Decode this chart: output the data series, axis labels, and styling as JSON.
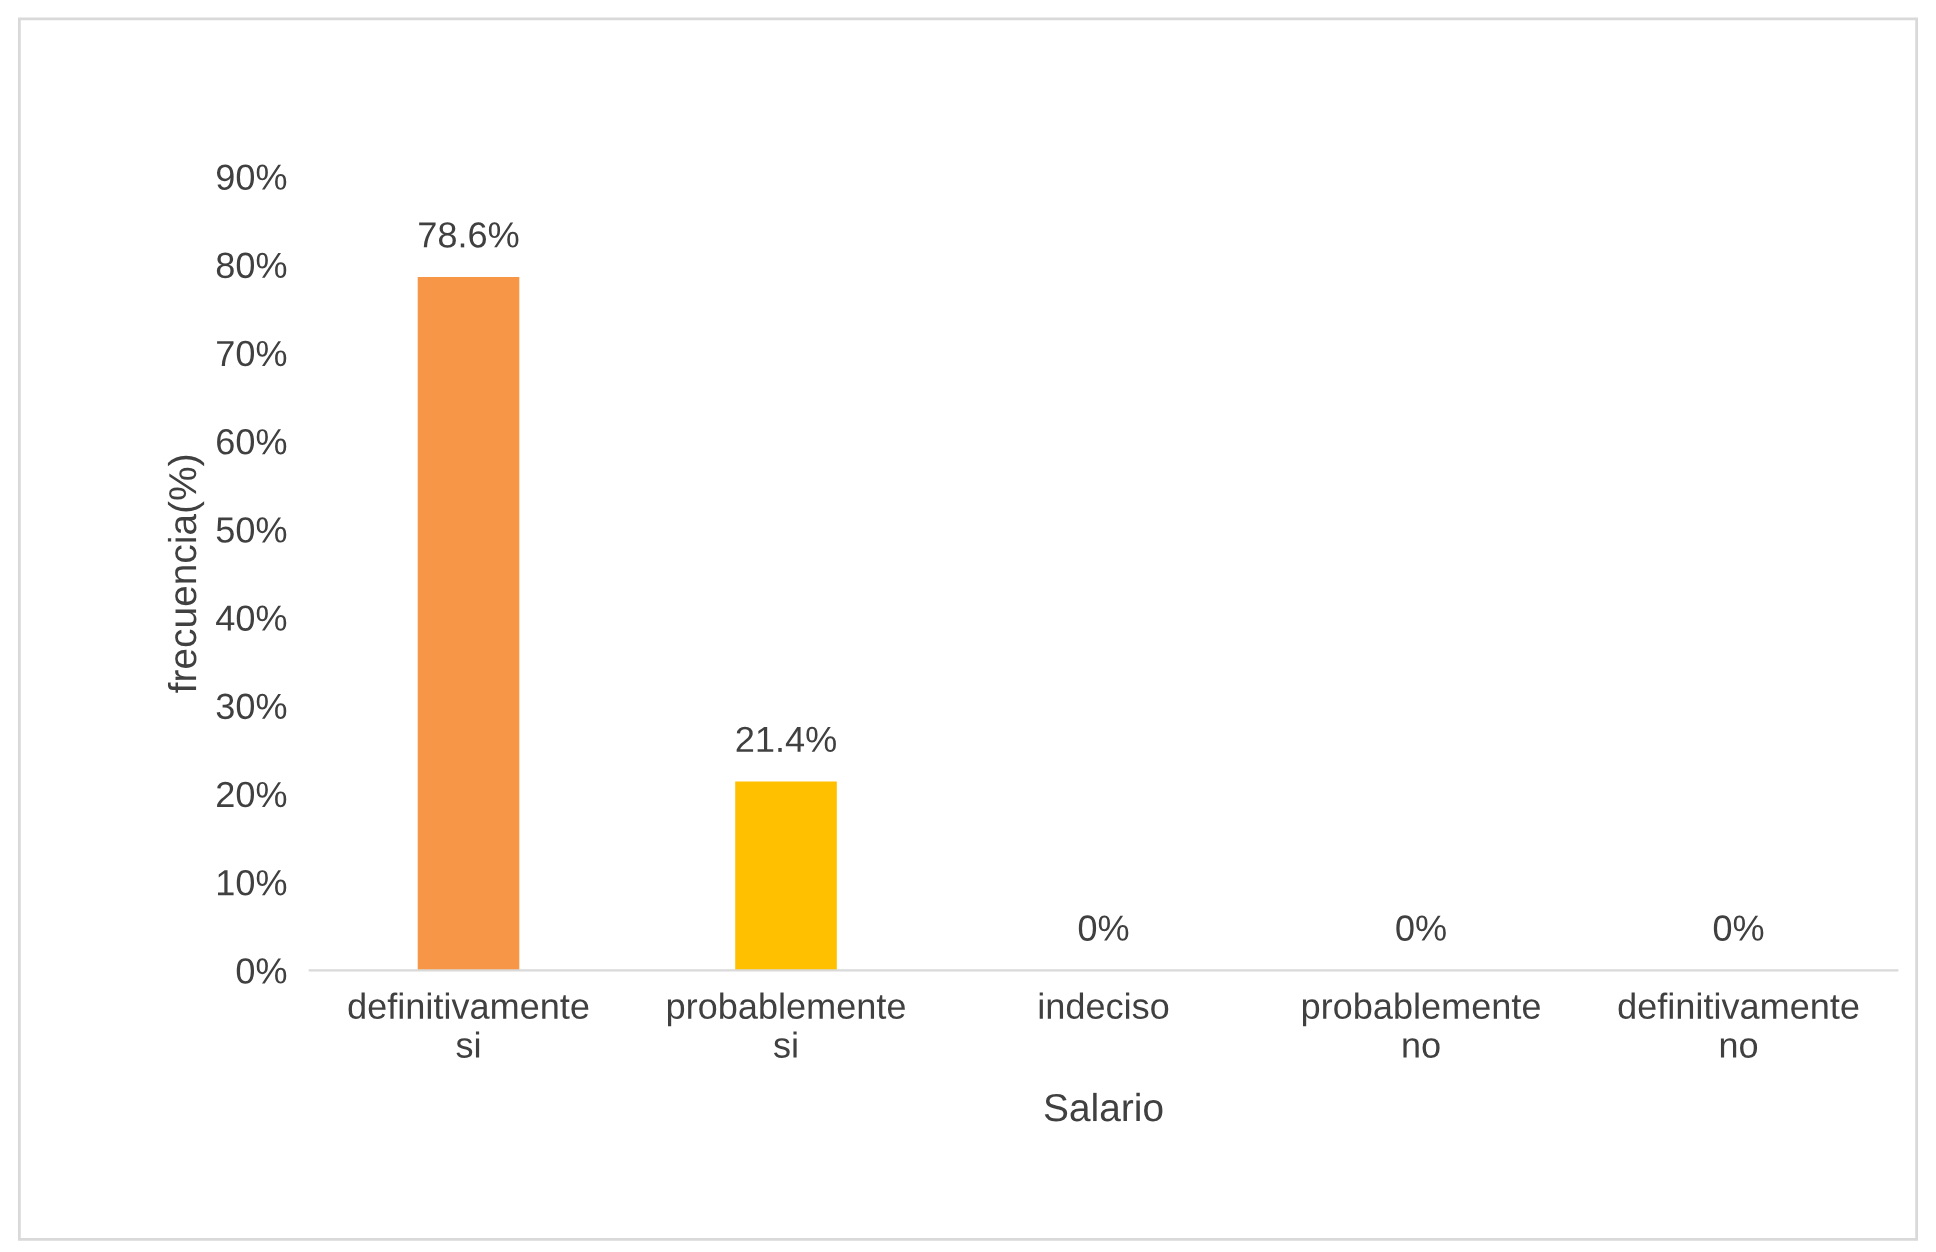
{
  "chart_data": {
    "type": "bar",
    "xlabel": "Salario",
    "ylabel": "frecuencia(%)",
    "categories": [
      "definitivamente\nsi",
      "probablemente\nsi",
      "indeciso",
      "probablemente\nno",
      "definitivamente\nno"
    ],
    "values": [
      78.6,
      21.4,
      0,
      0,
      0
    ],
    "colors": [
      "#f79646",
      "#ffc000",
      "#f79646",
      "#f79646",
      "#f79646"
    ],
    "value_labels": [
      "78.6%",
      "21.4%",
      "0%",
      "0%",
      "0%"
    ],
    "ylim": [
      0,
      90
    ],
    "yticks": [
      {
        "value": 0,
        "label": "0%"
      },
      {
        "value": 10,
        "label": "10%"
      },
      {
        "value": 20,
        "label": "20%"
      },
      {
        "value": 30,
        "label": "30%"
      },
      {
        "value": 40,
        "label": "40%"
      },
      {
        "value": 50,
        "label": "50%"
      },
      {
        "value": 60,
        "label": "60%"
      },
      {
        "value": 70,
        "label": "70%"
      },
      {
        "value": 80,
        "label": "80%"
      },
      {
        "value": 90,
        "label": "90%"
      }
    ],
    "grid": false,
    "legend": false
  }
}
